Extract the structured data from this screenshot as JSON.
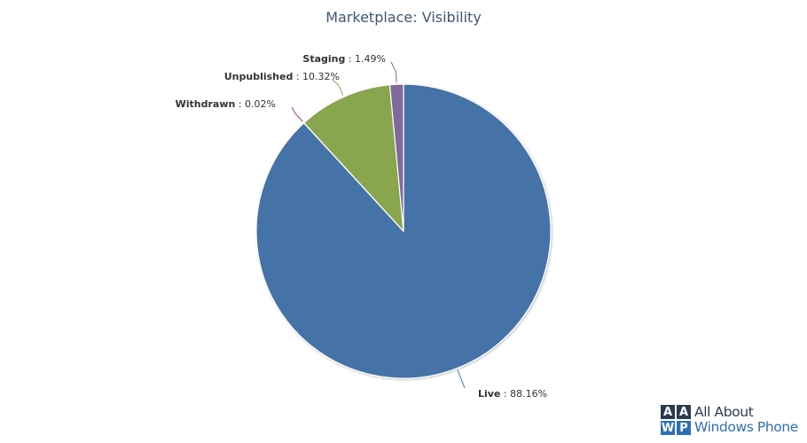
{
  "chart_data": {
    "type": "pie",
    "title": "Marketplace: Visibility",
    "slices": [
      {
        "name": "Live",
        "value": 88.16,
        "label": "88.16%",
        "color": "#4572a7"
      },
      {
        "name": "Withdrawn",
        "value": 0.02,
        "label": "0.02%",
        "color": "#aa4643"
      },
      {
        "name": "Unpublished",
        "value": 10.32,
        "label": "10.32%",
        "color": "#89a54e"
      },
      {
        "name": "Staging",
        "value": 1.49,
        "label": "1.49%",
        "color": "#80699b"
      }
    ],
    "start_angle_deg": 0,
    "direction": "clockwise",
    "data_labels": "name : percent, with connector lines"
  },
  "watermark": {
    "tiles": [
      "A",
      "A",
      "W",
      "P"
    ],
    "line1": "All About",
    "line2": "Windows Phone"
  }
}
